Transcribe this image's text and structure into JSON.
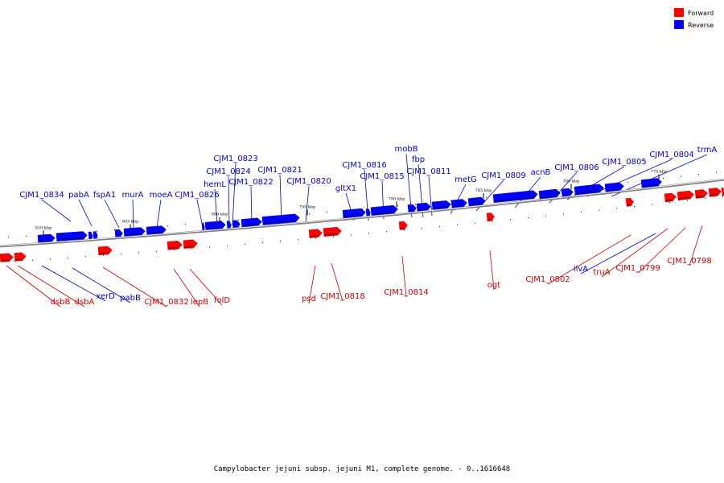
{
  "caption": "Campylobacter jejuni subsp. jejuni M1, complete genome. - 0..1616648",
  "legend": [
    {
      "label": "Forward",
      "color": "#ff0000"
    },
    {
      "label": "Reverse",
      "color": "#0000ff"
    }
  ],
  "colors": {
    "forward": "#ff0000",
    "reverse": "#0000ff",
    "backbone": "#808080",
    "label_forward": "#cc0000",
    "label_reverse": "#0000cc"
  },
  "scale_ticks": [
    "810 kbp",
    "805 kbp",
    "800 kbp",
    "795 kbp",
    "790 kbp",
    "785 kbp",
    "780 kbp",
    "775 kbp"
  ],
  "reverse_genes": [
    "CJM1_0834",
    "pabA",
    "fspA1",
    "murA",
    "moeA",
    "CJM1_0826",
    "hemL",
    "CJM1_0824",
    "CJM1_0823",
    "CJM1_0822",
    "CJM1_0821",
    "CJM1_0820",
    "gltX1",
    "CJM1_0816",
    "CJM1_0815",
    "mobB",
    "fbp",
    "CJM1_0811",
    "metG",
    "CJM1_0809",
    "acnB",
    "CJM1_0806",
    "CJM1_0805",
    "CJM1_0804",
    "trmA",
    "ilvA",
    "xerD",
    "pabB"
  ],
  "forward_genes": [
    "dsbB",
    "dsbA",
    "CJM1_0832",
    "lepB",
    "folD",
    "psd",
    "CJM1_0818",
    "CJM1_0814",
    "ogt",
    "CJM1_0802",
    "truA",
    "CJM1_0799",
    "CJM1_0798"
  ]
}
